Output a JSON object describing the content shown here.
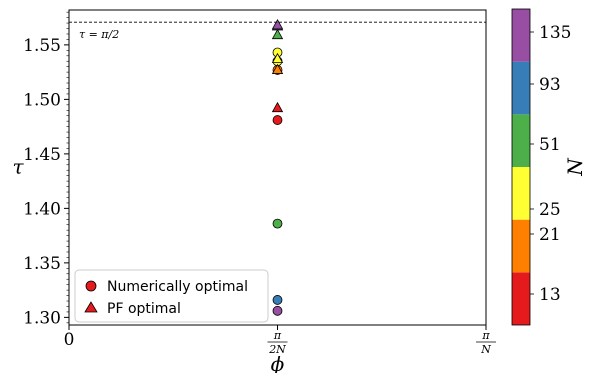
{
  "chart_data": {
    "type": "scatter",
    "xlabel": "ϕ",
    "ylabel": "τ",
    "xlim": [
      0,
      1
    ],
    "ylim": [
      1.293,
      1.582
    ],
    "x_ticks": [
      {
        "value": 0,
        "label": "0"
      },
      {
        "value": 0.5,
        "num": "π",
        "den": "2N"
      },
      {
        "value": 1,
        "num": "π",
        "den": "N"
      }
    ],
    "y_ticks": [
      1.3,
      1.35,
      1.4,
      1.45,
      1.5,
      1.55
    ],
    "reference_line": {
      "y": 1.5708,
      "label": "τ = π/2"
    },
    "series": [
      {
        "name": "Numerically optimal",
        "marker": "circle",
        "points": [
          {
            "x": 0.5,
            "y": 1.306,
            "N": 135
          },
          {
            "x": 0.5,
            "y": 1.316,
            "N": 93
          },
          {
            "x": 0.5,
            "y": 1.386,
            "N": 51
          },
          {
            "x": 0.5,
            "y": 1.481,
            "N": 13
          },
          {
            "x": 0.5,
            "y": 1.527,
            "N": 21
          },
          {
            "x": 0.5,
            "y": 1.535,
            "N": 25
          },
          {
            "x": 0.5,
            "y": 1.543,
            "N": 25
          }
        ]
      },
      {
        "name": "PF optimal",
        "marker": "triangle",
        "points": [
          {
            "x": 0.5,
            "y": 1.492,
            "N": 13
          },
          {
            "x": 0.5,
            "y": 1.527,
            "N": 21
          },
          {
            "x": 0.5,
            "y": 1.537,
            "N": 25
          },
          {
            "x": 0.5,
            "y": 1.559,
            "N": 51
          },
          {
            "x": 0.5,
            "y": 1.567,
            "N": 93
          },
          {
            "x": 0.5,
            "y": 1.568,
            "N": 135
          }
        ]
      }
    ],
    "legend": {
      "placement": "lower-left",
      "entries": [
        "Numerically optimal",
        "PF optimal"
      ]
    },
    "colorbar": {
      "label": "N",
      "segments": [
        {
          "color": "#e41a1c",
          "label": "13"
        },
        {
          "color": "#ff7f00",
          "label": "21"
        },
        {
          "color": "#ffff33",
          "label": "25"
        },
        {
          "color": "#4daf4a",
          "label": "51"
        },
        {
          "color": "#377eb8",
          "label": "93"
        },
        {
          "color": "#984ea3",
          "label": "135"
        }
      ]
    },
    "grid": false
  }
}
